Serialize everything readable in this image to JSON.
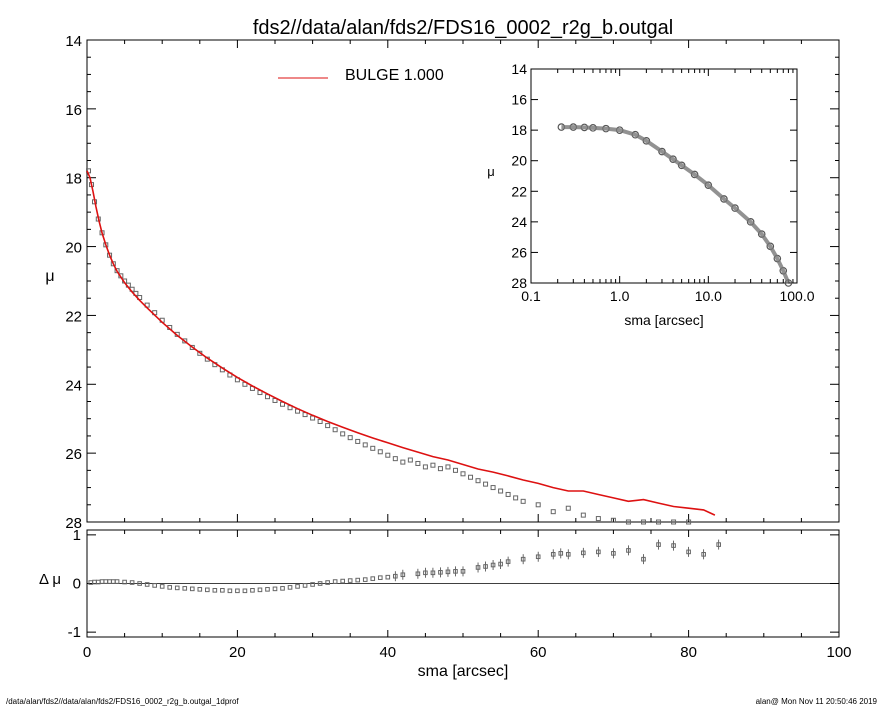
{
  "title": "fds2//data/alan/fds2/FDS16_0002_r2g_b.outgal",
  "legend": {
    "label": "BULGE  1.000",
    "color": "#dd1111"
  },
  "footer": {
    "left": "/data/alan/fds2//data/alan/fds2/FDS16_0002_r2g_b.outgal_1dprof",
    "right": "alan@  Mon Nov 11 20:50:46 2019"
  },
  "chart_data": [
    {
      "type": "scatter",
      "panel": "main",
      "ylabel": "μ",
      "xlim": [
        0,
        100
      ],
      "ylim": [
        28,
        14
      ],
      "y_inverted": true,
      "xticks": [
        0,
        20,
        40,
        60,
        80,
        100
      ],
      "yticks": [
        14,
        16,
        18,
        20,
        22,
        24,
        26,
        28
      ],
      "series": [
        {
          "kind": "data",
          "marker": "square",
          "color": "#666666",
          "x": [
            0.2,
            0.6,
            1.0,
            1.5,
            2.0,
            2.5,
            3.0,
            3.5,
            4.0,
            4.5,
            5.0,
            5.5,
            6.0,
            6.5,
            7.0,
            8.0,
            9.0,
            10.0,
            11.0,
            12.0,
            13.0,
            14.0,
            15.0,
            16.0,
            17.0,
            18.0,
            19.0,
            20.0,
            21.0,
            22.0,
            23.0,
            24.0,
            25.0,
            26.0,
            27.0,
            28.0,
            29.0,
            30.0,
            31.0,
            32.0,
            33.0,
            34.0,
            35.0,
            36.0,
            37.0,
            38.0,
            39.0,
            40.0,
            41.0,
            42.0,
            43.0,
            44.0,
            45.0,
            46.0,
            47.0,
            48.0,
            49.0,
            50.0,
            51.0,
            52.0,
            53.0,
            54.0,
            55.0,
            56.0,
            57.0,
            58.0,
            60.0,
            62.0,
            64.0,
            66.0,
            68.0,
            70.0,
            72.0,
            74.0,
            76.0,
            78.0,
            80.0
          ],
          "y": [
            17.8,
            18.2,
            18.7,
            19.2,
            19.6,
            19.95,
            20.25,
            20.5,
            20.7,
            20.85,
            21.0,
            21.12,
            21.24,
            21.36,
            21.48,
            21.7,
            21.92,
            22.14,
            22.35,
            22.55,
            22.74,
            22.93,
            23.1,
            23.27,
            23.43,
            23.58,
            23.73,
            23.87,
            24.0,
            24.12,
            24.24,
            24.36,
            24.47,
            24.58,
            24.68,
            24.78,
            24.88,
            24.98,
            25.08,
            25.2,
            25.32,
            25.44,
            25.55,
            25.66,
            25.76,
            25.86,
            25.96,
            26.06,
            26.16,
            26.26,
            26.2,
            26.3,
            26.4,
            26.35,
            26.45,
            26.4,
            26.5,
            26.6,
            26.7,
            26.8,
            26.9,
            27.0,
            27.1,
            27.2,
            27.3,
            27.4,
            27.5,
            27.7,
            27.6,
            27.8,
            27.9,
            27.95,
            28.0,
            28.0,
            28.0,
            28.0,
            28.0
          ]
        },
        {
          "kind": "model",
          "name": "BULGE  1.000",
          "color": "#dd1111",
          "x": [
            0.0,
            0.4,
            0.8,
            1.2,
            1.6,
            2.0,
            2.5,
            3.0,
            3.5,
            4.0,
            5.0,
            6.0,
            7.0,
            8.0,
            10.0,
            12.0,
            14.0,
            16.0,
            18.0,
            20.0,
            22.0,
            24.0,
            26.0,
            28.0,
            30.0,
            32.0,
            34.0,
            36.0,
            38.0,
            40.0,
            42.0,
            44.0,
            46.0,
            48.0,
            50.0,
            52.0,
            54.0,
            56.0,
            58.0,
            60.0,
            62.0,
            64.0,
            66.0,
            68.0,
            70.0,
            72.0,
            74.0,
            76.0,
            78.0,
            80.0,
            82.0,
            83.5
          ],
          "y": [
            17.8,
            18.0,
            18.4,
            18.85,
            19.25,
            19.6,
            19.95,
            20.25,
            20.5,
            20.72,
            21.05,
            21.32,
            21.56,
            21.78,
            22.2,
            22.58,
            22.92,
            23.24,
            23.53,
            23.8,
            24.05,
            24.28,
            24.5,
            24.71,
            24.9,
            25.08,
            25.25,
            25.41,
            25.56,
            25.7,
            25.84,
            25.97,
            26.1,
            26.2,
            26.33,
            26.46,
            26.55,
            26.66,
            26.78,
            26.88,
            27.0,
            27.1,
            27.1,
            27.2,
            27.3,
            27.4,
            27.35,
            27.45,
            27.55,
            27.6,
            27.65,
            27.8
          ]
        }
      ]
    },
    {
      "type": "scatter",
      "panel": "residual",
      "xlabel": "sma [arcsec]",
      "ylabel": "Δ μ",
      "xlim": [
        0,
        100
      ],
      "ylim": [
        -1.1,
        1.1
      ],
      "xticks": [
        0,
        20,
        40,
        60,
        80,
        100
      ],
      "yticks": [
        -1,
        0,
        1
      ],
      "series": [
        {
          "kind": "residual",
          "marker": "square",
          "color": "#666666",
          "x": [
            0.5,
            1.0,
            1.5,
            2.0,
            2.5,
            3.0,
            3.5,
            4.0,
            5.0,
            6.0,
            7.0,
            8.0,
            9.0,
            10.0,
            11.0,
            12.0,
            13.0,
            14.0,
            15.0,
            16.0,
            17.0,
            18.0,
            19.0,
            20.0,
            21.0,
            22.0,
            23.0,
            24.0,
            25.0,
            26.0,
            27.0,
            28.0,
            29.0,
            30.0,
            31.0,
            32.0,
            33.0,
            34.0,
            35.0,
            36.0,
            37.0,
            38.0,
            39.0,
            40.0,
            41.0,
            42.0,
            44.0,
            45.0,
            46.0,
            47.0,
            48.0,
            49.0,
            50.0,
            52.0,
            53.0,
            54.0,
            55.0,
            56.0,
            58.0,
            60.0,
            62.0,
            63.0,
            64.0,
            66.0,
            68.0,
            70.0,
            72.0,
            74.0,
            76.0,
            78.0,
            80.0,
            82.0,
            84.0
          ],
          "y": [
            0.02,
            0.03,
            0.03,
            0.04,
            0.04,
            0.04,
            0.04,
            0.04,
            0.03,
            0.02,
            0.0,
            -0.02,
            -0.04,
            -0.06,
            -0.08,
            -0.09,
            -0.1,
            -0.11,
            -0.12,
            -0.13,
            -0.14,
            -0.14,
            -0.15,
            -0.15,
            -0.15,
            -0.14,
            -0.13,
            -0.12,
            -0.11,
            -0.1,
            -0.08,
            -0.06,
            -0.04,
            -0.02,
            0.0,
            0.02,
            0.04,
            0.05,
            0.06,
            0.07,
            0.08,
            0.1,
            0.12,
            0.13,
            0.15,
            0.18,
            0.2,
            0.22,
            0.22,
            0.23,
            0.24,
            0.25,
            0.25,
            0.33,
            0.35,
            0.38,
            0.4,
            0.45,
            0.5,
            0.55,
            0.6,
            0.62,
            0.6,
            0.63,
            0.65,
            0.62,
            0.68,
            0.5,
            0.8,
            0.78,
            0.65,
            0.6,
            0.8
          ]
        }
      ]
    },
    {
      "type": "scatter",
      "panel": "inset",
      "xlabel": "sma [arcsec]",
      "ylabel": "μ",
      "xscale": "log",
      "xlim": [
        0.1,
        100.0
      ],
      "ylim": [
        28,
        14
      ],
      "y_inverted": true,
      "xtick_labels": [
        "0.1",
        "1.0",
        "10.0",
        "100.0"
      ],
      "yticks": [
        14,
        16,
        18,
        20,
        22,
        24,
        26,
        28
      ],
      "series": [
        {
          "kind": "data",
          "marker": "circle",
          "color": "#555555",
          "x": [
            0.22,
            0.3,
            0.4,
            0.5,
            0.7,
            1.0,
            1.5,
            2.0,
            3.0,
            4.0,
            5.0,
            7.0,
            10.0,
            15.0,
            20.0,
            30.0,
            40.0,
            50.0,
            60.0,
            70.0,
            80.0
          ],
          "y": [
            17.8,
            17.8,
            17.82,
            17.85,
            17.9,
            18.0,
            18.3,
            18.7,
            19.4,
            19.9,
            20.3,
            20.9,
            21.6,
            22.5,
            23.1,
            24.0,
            24.8,
            25.6,
            26.4,
            27.2,
            28.0
          ]
        }
      ]
    }
  ]
}
